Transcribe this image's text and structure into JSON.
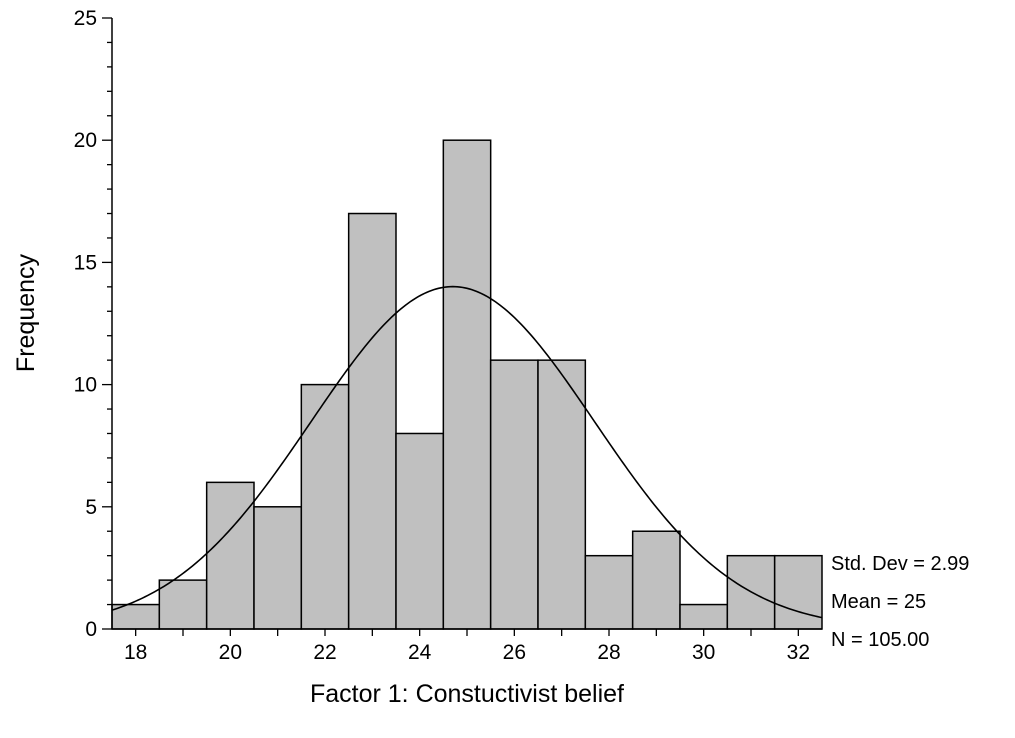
{
  "chart_data": {
    "type": "histogram",
    "xlabel": "Factor 1: Constuctivist belief",
    "ylabel": "Frequency",
    "xlim": [
      17.5,
      32.5
    ],
    "ylim": [
      0,
      25
    ],
    "bin_width": 1,
    "bin_centers": [
      18,
      19,
      20,
      21,
      22,
      23,
      24,
      25,
      26,
      27,
      28,
      29,
      30,
      31,
      32
    ],
    "values": [
      1,
      2,
      6,
      5,
      10,
      17,
      8,
      20,
      11,
      11,
      3,
      4,
      1,
      3,
      3
    ],
    "x_ticks": [
      18,
      20,
      22,
      24,
      26,
      28,
      30,
      32
    ],
    "y_ticks": [
      0,
      5,
      10,
      15,
      20,
      25
    ],
    "normal_curve": {
      "mean": 24.7,
      "sd": 2.99,
      "n": 105
    },
    "stats": [
      "Std. Dev = 2.99",
      "Mean = 25",
      "N = 105.00"
    ],
    "bar_color": "#c0c0c0",
    "grid": false
  }
}
